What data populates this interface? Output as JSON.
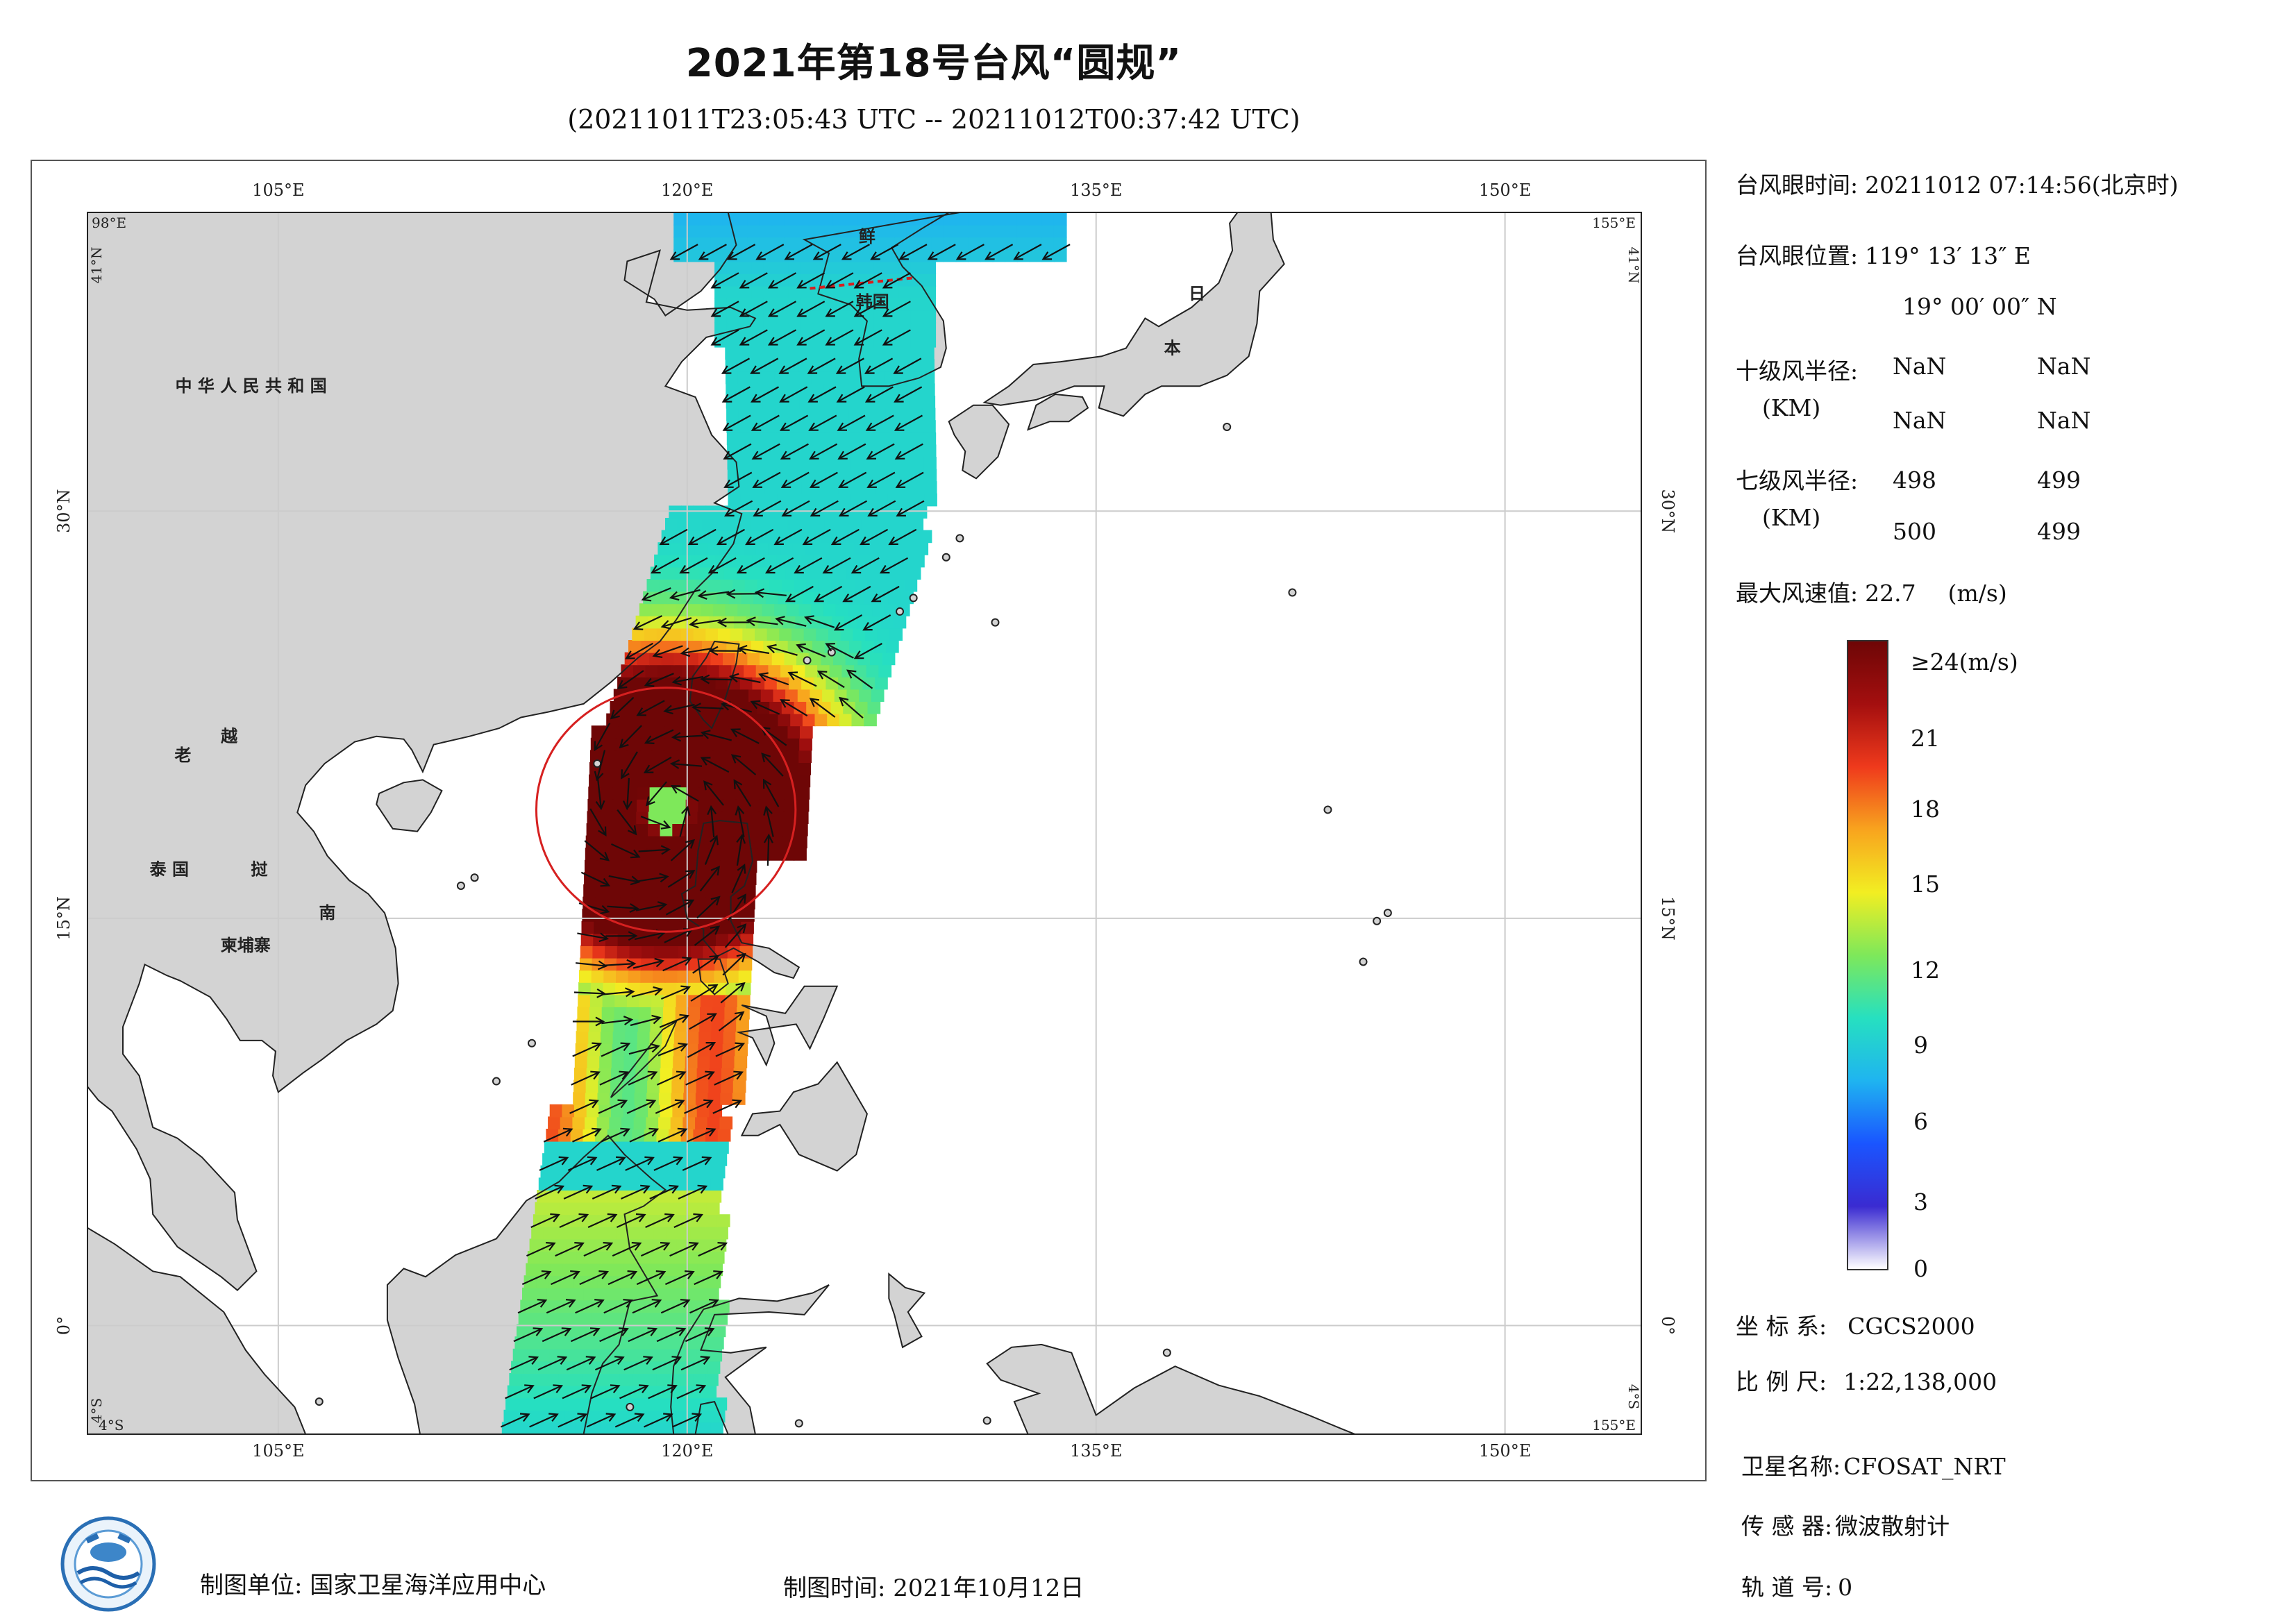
{
  "title": "2021年第18号台风“圆规”",
  "subtitle": "(20211011T23:05:43 UTC -- 20211012T00:37:42 UTC)",
  "map": {
    "lon_labels": [
      "105°E",
      "120°E",
      "135°E",
      "150°E"
    ],
    "lat_labels": [
      "30°N",
      "15°N",
      "0°"
    ],
    "corner_labels": {
      "top_left_lon": "98°E",
      "top_left_lat": "41°N",
      "top_right_lon": "155°E",
      "top_right_lat": "41°N",
      "bottom_left_lat": "4°S",
      "bottom_left_lon": "98°E",
      "bottom_left_s": "4°S",
      "bottom_right_lat": "4°S",
      "bottom_right_lon": "155°E"
    },
    "place_labels": {
      "china": "中 华 人 民 共 和 国",
      "laos": "老",
      "vietnam_1": "越",
      "vietnam_2": "南",
      "thailand": "泰 国",
      "cambodia": "柬埔寨",
      "cambodia2": "挝",
      "korea_n": "鲜",
      "korea_s": "韩国",
      "japan_1": "日",
      "japan_2": "本"
    },
    "typhoon_eye": {
      "lon": 119.22,
      "lat": 19.0,
      "radius_km_7": 499
    },
    "colors": {
      "land": "#d3d3d3",
      "coast": "#222222",
      "circle": "#d62020",
      "grid": "#cccccc"
    }
  },
  "info": {
    "eye_time_label": "台风眼时间:",
    "eye_time_value": "20211012 07:14:56(北京时)",
    "eye_pos_label": "台风眼位置:",
    "eye_pos_lon": "119° 13′ 13″ E",
    "eye_pos_lat": "19° 00′ 00″ N",
    "r10_label": "十级风半径:",
    "r10_unit": "(KM)",
    "r10_values": [
      "NaN",
      "NaN",
      "NaN",
      "NaN"
    ],
    "r7_label": "七级风半径:",
    "r7_unit": "(KM)",
    "r7_values": [
      "498",
      "499",
      "500",
      "499"
    ],
    "max_wind_label": "最大风速值:",
    "max_wind_value": "22.7",
    "max_wind_unit": "(m/s)",
    "crs_label": "坐 标 系:",
    "crs_value": "CGCS2000",
    "scale_label": "比 例 尺:",
    "scale_value": "1:22,138,000",
    "sat_label": "卫星名称:",
    "sat_value": "CFOSAT_NRT",
    "sensor_label": "传 感 器:",
    "sensor_value": "微波散射计",
    "orbit_label": "轨 道 号:",
    "orbit_value": "0"
  },
  "colorbar": {
    "labels": [
      "≥24(m/s)",
      "21",
      "18",
      "15",
      "12",
      "9",
      "6",
      "3",
      "0"
    ],
    "min": 0,
    "max": 24,
    "stops": [
      "#ffffff",
      "#3a2bd1",
      "#1a55ff",
      "#1fb4f0",
      "#26e0c0",
      "#7ee85a",
      "#f2ee22",
      "#f8a41e",
      "#ef3a1c",
      "#a40f0f",
      "#6e0606"
    ]
  },
  "footer": {
    "unit": "制图单位: 国家卫星海洋应用中心",
    "time": "制图时间: 2021年10月12日",
    "logo": "nsoas-logo"
  }
}
